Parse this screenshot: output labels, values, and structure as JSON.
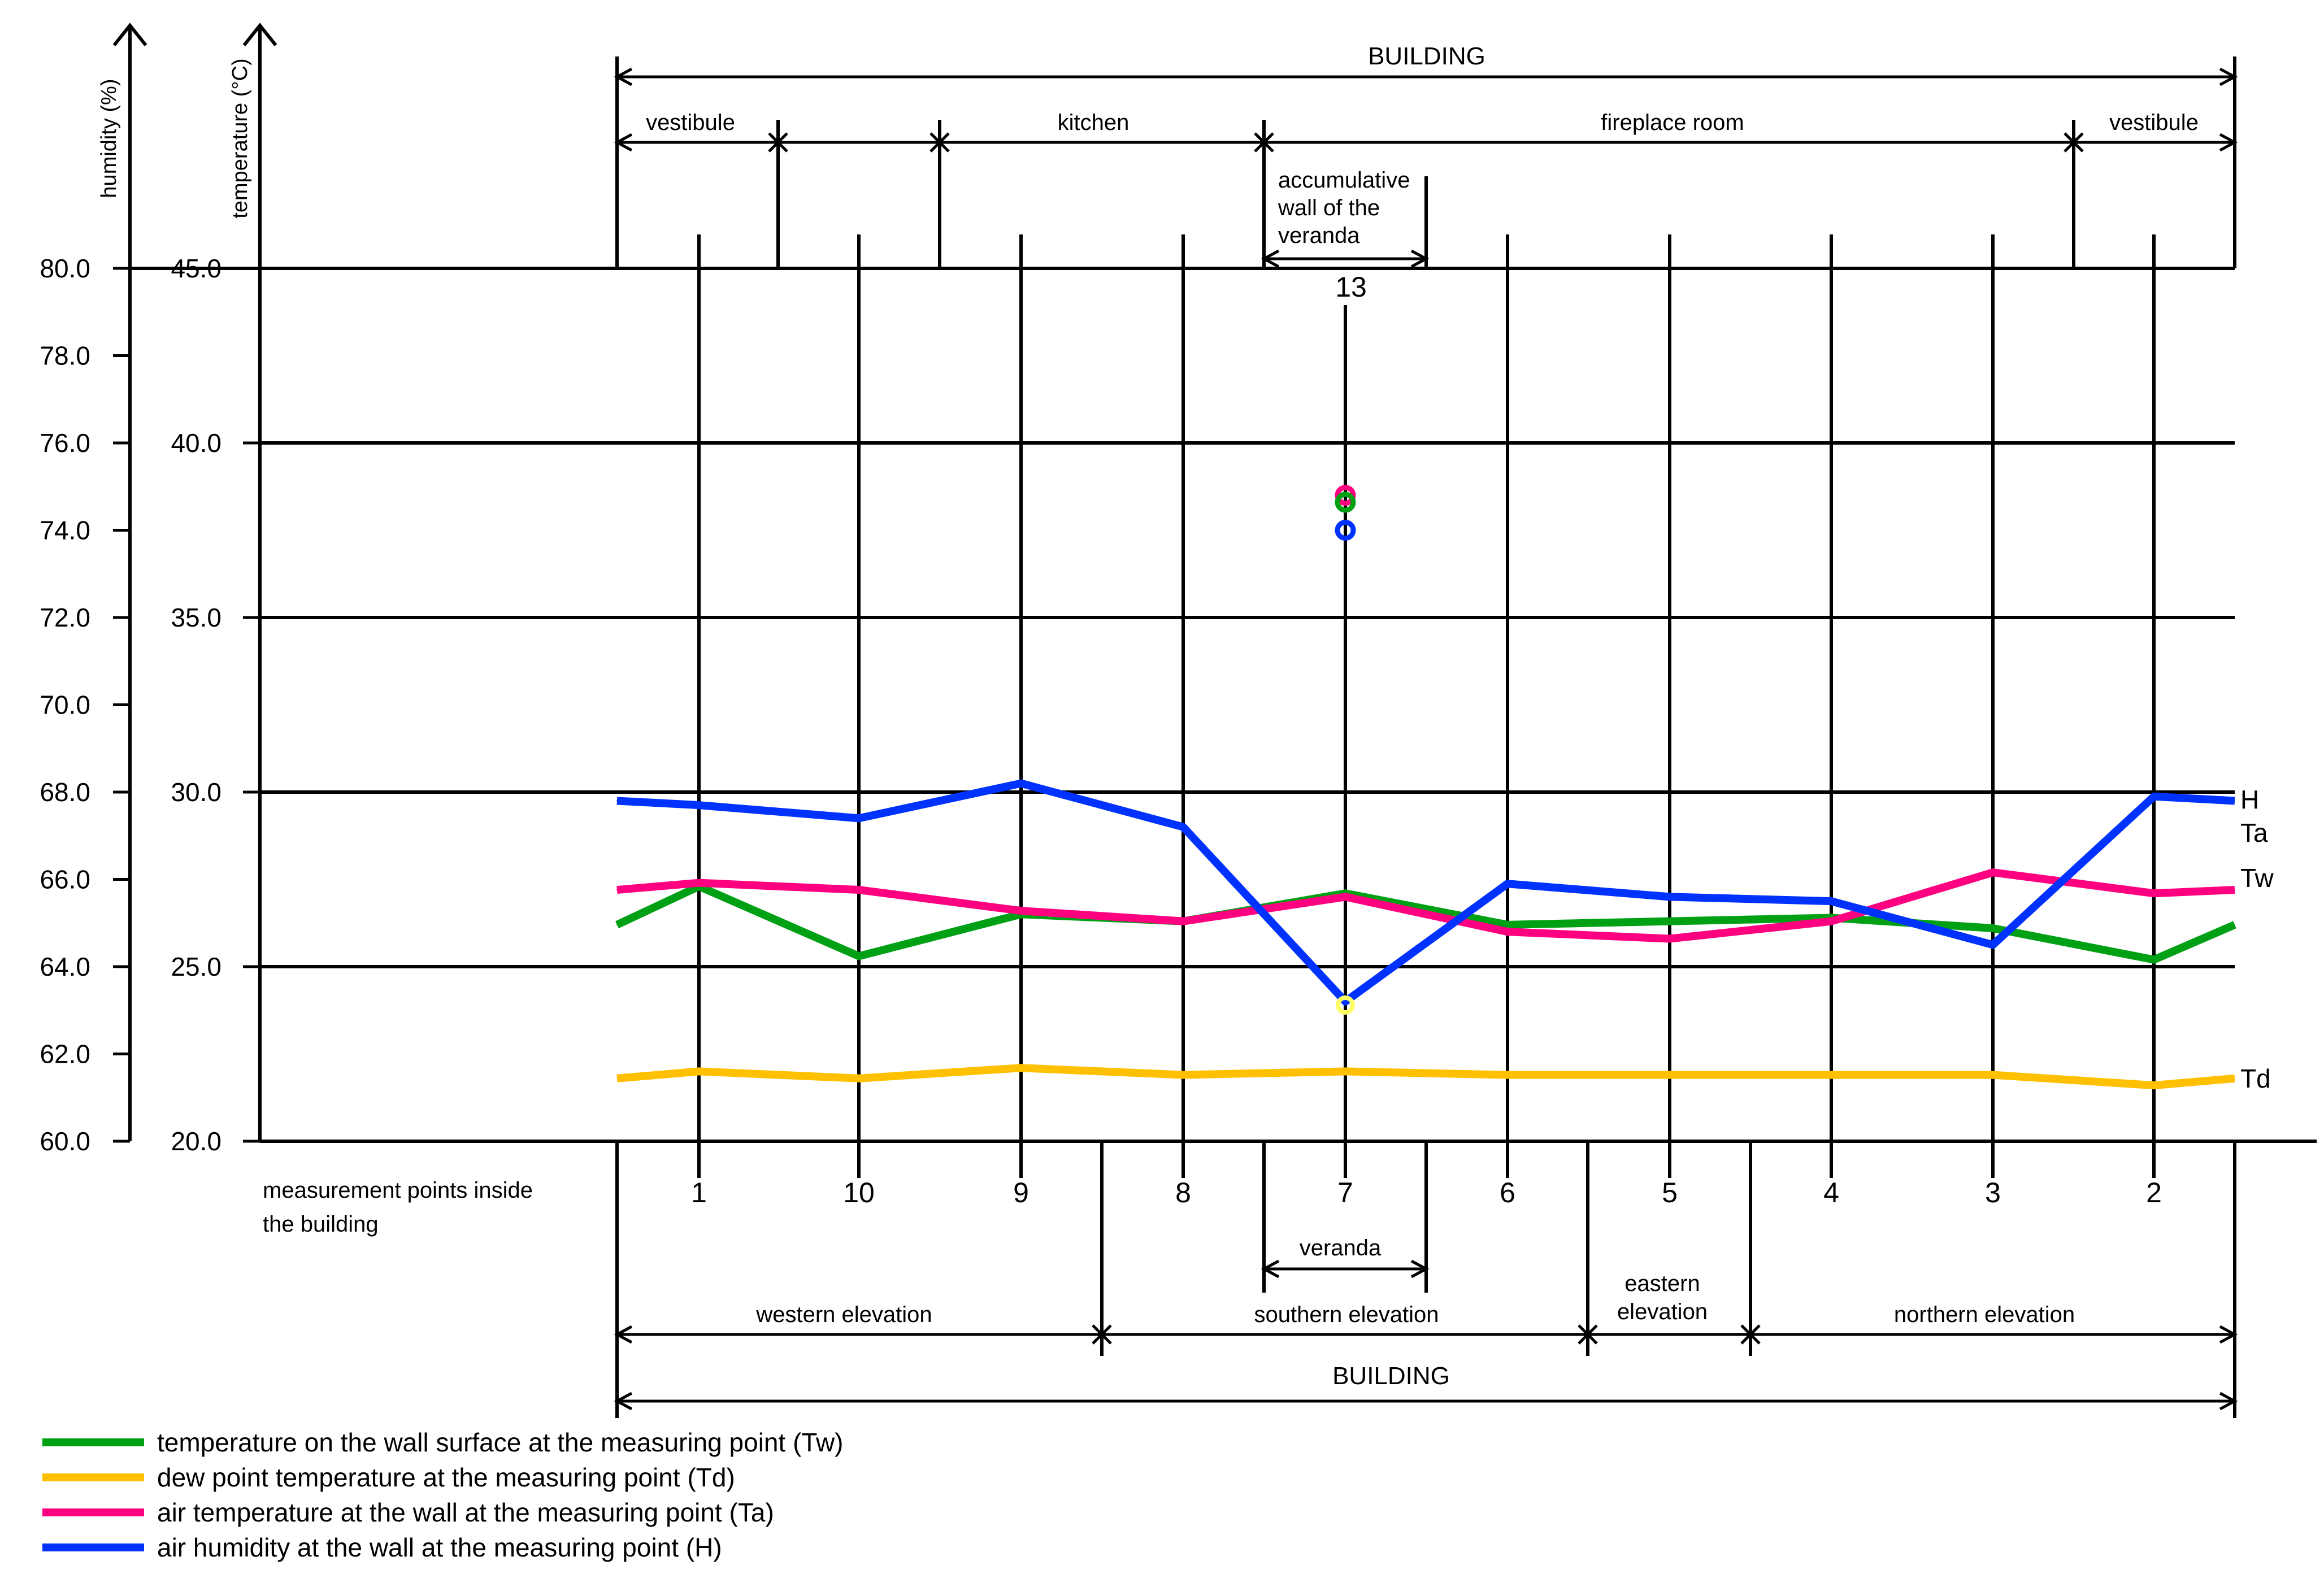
{
  "chart_data": {
    "type": "line",
    "y_left_label": "humidity (%)",
    "y_right_label": "temperature (°C)",
    "humidity_ticks": [
      "80.0",
      "78.0",
      "76.0",
      "74.0",
      "72.0",
      "70.0",
      "68.0",
      "66.0",
      "64.0",
      "62.0",
      "60.0"
    ],
    "temperature_ticks": [
      "45.0",
      "40.0",
      "35.0",
      "30.0",
      "25.0",
      "20.0"
    ],
    "humidity_ylim": [
      60,
      80
    ],
    "temperature_ylim": [
      20,
      45
    ],
    "grid": "horizontal at temperature ticks",
    "x_axis_title": "measurement points inside the building",
    "x_labels": [
      "1",
      "10",
      "9",
      "8",
      "7",
      "6",
      "5",
      "4",
      "3",
      "2"
    ],
    "top_point_label": "13",
    "series": [
      {
        "name": "Tw",
        "axis": "temperature",
        "color": "#00a014",
        "start": 26.2,
        "values": [
          27.3,
          25.3,
          26.5,
          26.3,
          27.1,
          26.2,
          26.3,
          26.4,
          26.1,
          25.2
        ],
        "end": 26.2
      },
      {
        "name": "Td",
        "axis": "temperature",
        "color": "#ffc000",
        "start": 21.8,
        "values": [
          22.0,
          21.8,
          22.1,
          21.9,
          22.0,
          21.9,
          21.9,
          21.9,
          21.9,
          21.6
        ],
        "end": 21.8
      },
      {
        "name": "Ta",
        "axis": "temperature",
        "color": "#ff0080",
        "start": 27.2,
        "values": [
          27.4,
          27.2,
          26.6,
          26.3,
          27.0,
          26.0,
          25.8,
          26.3,
          27.7,
          27.1
        ],
        "end": 27.2
      },
      {
        "name": "H",
        "axis": "humidity",
        "color": "#0032ff",
        "start": 67.8,
        "values": [
          67.7,
          67.4,
          68.2,
          67.2,
          63.2,
          65.9,
          65.6,
          65.5,
          64.5,
          67.9
        ],
        "end": 67.8
      }
    ],
    "point_13_markers": [
      {
        "series": "Ta",
        "value": 38.5,
        "color": "#ff0080"
      },
      {
        "series": "Tw",
        "value": 38.3,
        "color": "#00a014"
      },
      {
        "series": "H",
        "value": 74.0,
        "color": "#0032ff"
      }
    ],
    "point_7_marker": {
      "series": "Td",
      "value": 23.9,
      "color": "#ffff66"
    },
    "end_labels": [
      "H",
      "Ta",
      "Tw",
      "Td"
    ],
    "legend": [
      {
        "text": "temperature on the wall surface at the measuring point (Tw)",
        "color": "#00a014"
      },
      {
        "text": "dew point temperature at the measuring point (Td)",
        "color": "#ffc000"
      },
      {
        "text": "air temperature at the wall at the measuring point (Ta)",
        "color": "#ff0080"
      },
      {
        "text": "air humidity at the wall at the measuring point (H)",
        "color": "#0032ff"
      }
    ],
    "building_label": "BUILDING",
    "rooms": [
      "vestibule",
      "kitchen",
      "fireplace room",
      "vestibule"
    ],
    "accumulative_wall_label": [
      "accumulative",
      "wall of the",
      "veranda"
    ],
    "veranda_label": "veranda",
    "elevations": [
      "western elevation",
      "southern elevation",
      "eastern elevation",
      "northern elevation"
    ]
  }
}
